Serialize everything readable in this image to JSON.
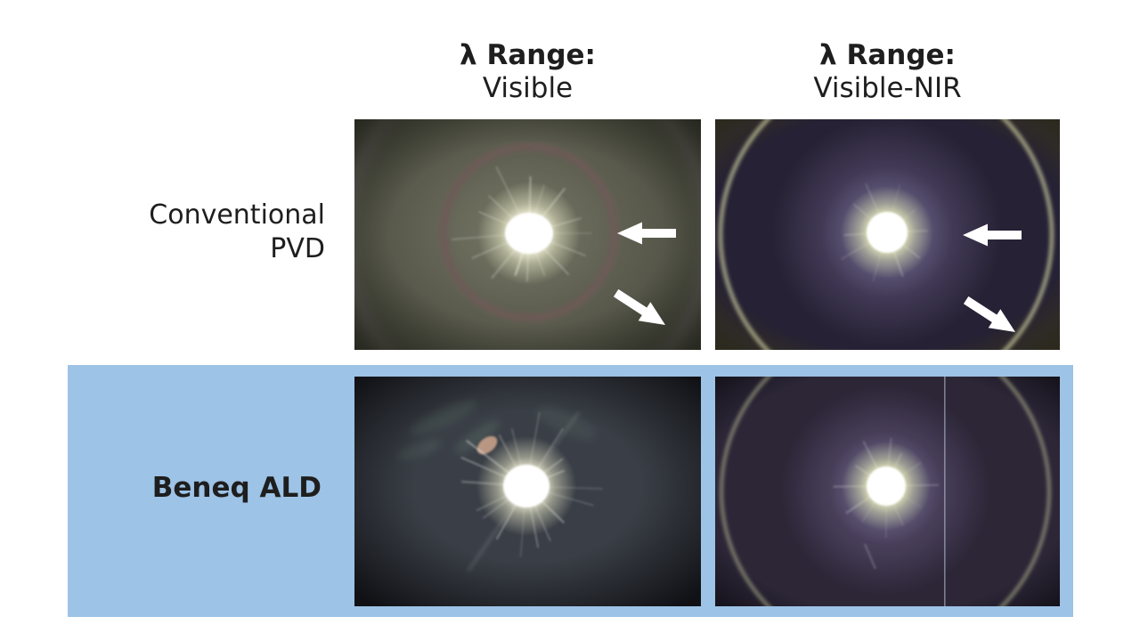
{
  "columns": [
    {
      "header_bold": "λ Range:",
      "header_sub": "Visible"
    },
    {
      "header_bold": "λ Range:",
      "header_sub": "Visible-NIR"
    }
  ],
  "rows": [
    {
      "label_line1": "Conventional",
      "label_line2": "PVD",
      "emphasis": false
    },
    {
      "label_line1": "Beneq ALD",
      "emphasis": true
    }
  ],
  "colors": {
    "highlight_band": "#9DC3E6",
    "text": "#1e1e1e",
    "arrow": "#ffffff",
    "background": "#ffffff"
  },
  "figures": [
    {
      "name": "conventional-pvd-visible",
      "arrow_annotations": 2
    },
    {
      "name": "conventional-pvd-visible-nir",
      "arrow_annotations": 2
    },
    {
      "name": "beneq-ald-visible",
      "arrow_annotations": 0
    },
    {
      "name": "beneq-ald-visible-nir",
      "arrow_annotations": 0
    }
  ]
}
